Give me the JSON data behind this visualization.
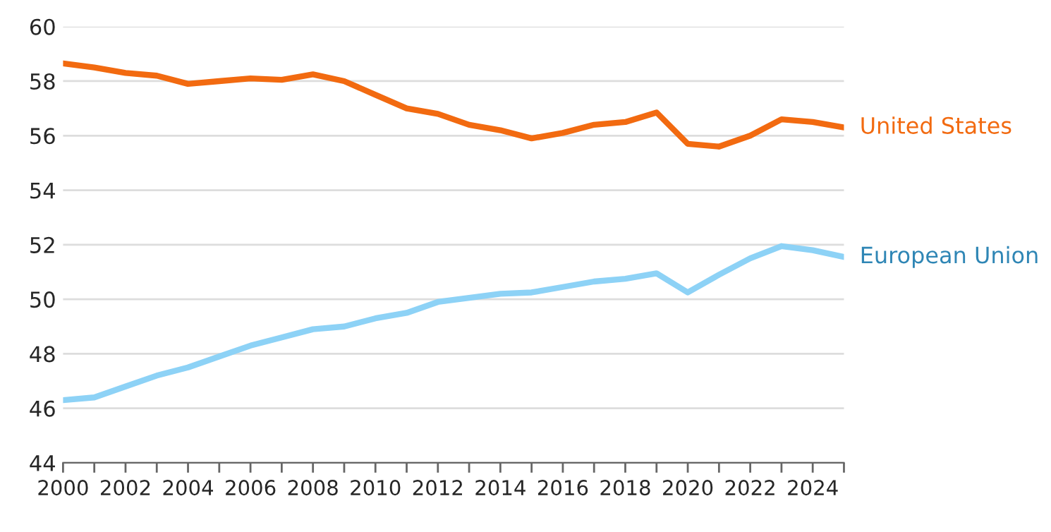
{
  "chart_data": {
    "type": "line",
    "x": [
      2000,
      2001,
      2002,
      2003,
      2004,
      2005,
      2006,
      2007,
      2008,
      2009,
      2010,
      2011,
      2012,
      2013,
      2014,
      2015,
      2016,
      2017,
      2018,
      2019,
      2020,
      2021,
      2022,
      2023,
      2024,
      2025
    ],
    "series": [
      {
        "name": "United States",
        "color": "#f26a10",
        "values": [
          58.65,
          58.5,
          58.3,
          58.2,
          57.9,
          58.0,
          58.1,
          58.05,
          58.25,
          58.0,
          57.5,
          57.0,
          56.8,
          56.4,
          56.2,
          55.9,
          56.1,
          56.4,
          56.5,
          56.85,
          55.7,
          55.6,
          56.0,
          56.6,
          56.5,
          56.3
        ]
      },
      {
        "name": "European Union",
        "color": "#8dd2f6",
        "values": [
          46.3,
          46.4,
          46.8,
          47.2,
          47.5,
          47.9,
          48.3,
          48.6,
          48.9,
          49.0,
          49.3,
          49.5,
          49.9,
          50.05,
          50.2,
          50.25,
          50.45,
          50.65,
          50.75,
          50.95,
          50.25,
          50.9,
          51.5,
          51.95,
          51.8,
          51.55
        ]
      }
    ],
    "xlim": [
      2000,
      2025
    ],
    "xticks": [
      2000,
      {
        "value": 2001,
        "label": null
      },
      2002,
      {
        "value": 2003,
        "label": null
      },
      2004,
      {
        "value": 2005,
        "label": null
      },
      2006,
      {
        "value": 2007,
        "label": null
      },
      2008,
      {
        "value": 2009,
        "label": null
      },
      2010,
      {
        "value": 2011,
        "label": null
      },
      2012,
      {
        "value": 2013,
        "label": null
      },
      2014,
      {
        "value": 2015,
        "label": null
      },
      2016,
      {
        "value": 2017,
        "label": null
      },
      2018,
      {
        "value": 2019,
        "label": null
      },
      2020,
      {
        "value": 2021,
        "label": null
      },
      2022,
      {
        "value": 2023,
        "label": null
      },
      2024,
      {
        "value": 2025,
        "label": null
      }
    ],
    "ylim": [
      44,
      60
    ],
    "yticks": [
      44,
      46,
      48,
      50,
      52,
      54,
      56,
      58,
      60
    ],
    "grid": "y",
    "line_style": "solid",
    "marker": "none",
    "legend": false
  }
}
